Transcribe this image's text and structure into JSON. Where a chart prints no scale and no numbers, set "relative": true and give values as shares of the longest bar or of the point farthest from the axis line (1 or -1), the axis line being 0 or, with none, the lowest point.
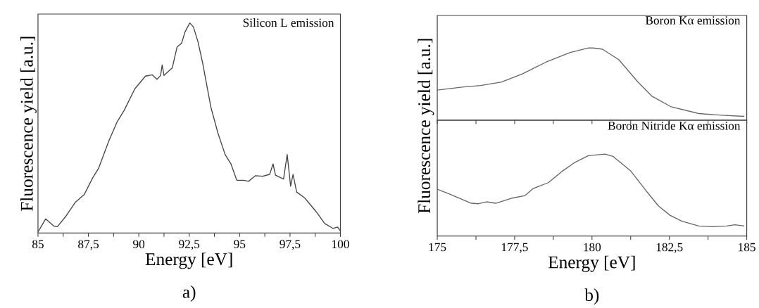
{
  "chart_data": [
    {
      "type": "line",
      "title": "Silicon L emission",
      "xlabel": "Energy [eV]",
      "ylabel": "Fluorescence yield [a.u.]",
      "relative": true,
      "tick_labels": "x",
      "annotations": [
        "a)"
      ],
      "xlim": [
        85,
        100
      ],
      "xticks": [
        85,
        {
          "value": 86.25,
          "label": null
        },
        {
          "value": 87.5,
          "label": "87,5"
        },
        {
          "value": 88.75,
          "label": null
        },
        90,
        {
          "value": 91.25,
          "label": null
        },
        {
          "value": 92.5,
          "label": "92,5"
        },
        {
          "value": 93.75,
          "label": null
        },
        95,
        {
          "value": 96.25,
          "label": null
        },
        {
          "value": 97.5,
          "label": "97,5"
        },
        {
          "value": 98.75,
          "label": null
        },
        100
      ],
      "series": [
        {
          "color": "#444444",
          "x": [
            85,
            85.38,
            85.79,
            85.96,
            86.37,
            86.84,
            87.3,
            87.71,
            88,
            88.52,
            88.93,
            89.28,
            89.8,
            90.33,
            90.67,
            90.9,
            91.08,
            91.16,
            91.25,
            91.66,
            91.9,
            92.12,
            92.3,
            92.53,
            92.71,
            92.94,
            93.17,
            93.58,
            93.93,
            94.28,
            94.57,
            94.86,
            95.21,
            95.44,
            95.79,
            96.14,
            96.49,
            96.66,
            96.78,
            97.18,
            97.36,
            97.53,
            97.65,
            97.83,
            98.23,
            98.81,
            99.22,
            99.63,
            99.86,
            100
          ],
          "values": [
            0.005,
            0.067,
            0.033,
            0.03,
            0.078,
            0.145,
            0.184,
            0.262,
            0.307,
            0.44,
            0.53,
            0.585,
            0.686,
            0.747,
            0.753,
            0.732,
            0.75,
            0.8,
            0.75,
            0.786,
            0.886,
            0.903,
            0.959,
            1.0,
            0.981,
            0.909,
            0.808,
            0.597,
            0.474,
            0.374,
            0.329,
            0.251,
            0.251,
            0.246,
            0.273,
            0.27,
            0.279,
            0.329,
            0.275,
            0.257,
            0.374,
            0.223,
            0.279,
            0.195,
            0.167,
            0.1,
            0.045,
            0.022,
            0.028,
            0.01
          ]
        }
      ]
    },
    {
      "type": "line",
      "title": "Boron Kα emission",
      "ylabel": "Fluorescence yield [a.u.]",
      "relative": true,
      "tick_labels": false,
      "xlim": [
        175,
        185
      ],
      "xticks": [
        175,
        {
          "value": 176.25,
          "label": null
        },
        {
          "value": 177.5,
          "label": null
        },
        {
          "value": 178.75,
          "label": null
        },
        {
          "value": 180,
          "label": null
        },
        {
          "value": 181.25,
          "label": null
        },
        {
          "value": 182.5,
          "label": null
        },
        {
          "value": 183.75,
          "label": null
        },
        {
          "value": 185,
          "label": null
        }
      ],
      "series": [
        {
          "color": "#666666",
          "x": [
            175,
            175.8,
            176.4,
            177.08,
            177.76,
            178.52,
            179.28,
            179.89,
            180.04,
            180.34,
            180.87,
            181.48,
            181.93,
            182.54,
            183.45,
            184.2,
            184.92
          ],
          "values": [
            0.416,
            0.458,
            0.48,
            0.529,
            0.643,
            0.805,
            0.935,
            1.0,
            1.0,
            0.983,
            0.837,
            0.529,
            0.334,
            0.188,
            0.091,
            0.068,
            0.052
          ]
        }
      ]
    },
    {
      "type": "line",
      "title": "Boron Nitride Kα emission",
      "xlabel": "Energy [eV]",
      "relative": true,
      "tick_labels": "x",
      "annotations": [
        "b)"
      ],
      "xlim": [
        175,
        185
      ],
      "xticks": [
        175,
        {
          "value": 176.25,
          "label": null
        },
        {
          "value": 177.5,
          "label": "177,5"
        },
        {
          "value": 178.75,
          "label": null
        },
        180,
        {
          "value": 181.25,
          "label": null
        },
        {
          "value": 182.5,
          "label": "182,5"
        },
        {
          "value": 183.75,
          "label": null
        },
        185
      ],
      "series": [
        {
          "color": "#666666",
          "x": [
            175,
            175.42,
            176.1,
            176.33,
            176.59,
            176.89,
            177.39,
            177.84,
            178.1,
            178.59,
            179.05,
            179.43,
            179.88,
            180.42,
            180.68,
            181.25,
            181.78,
            182.15,
            182.53,
            182.91,
            183.45,
            183.9,
            184.35,
            184.62,
            184.92
          ],
          "values": [
            0.571,
            0.508,
            0.4,
            0.394,
            0.417,
            0.4,
            0.46,
            0.494,
            0.58,
            0.651,
            0.794,
            0.894,
            0.98,
            1.0,
            0.971,
            0.794,
            0.537,
            0.366,
            0.251,
            0.18,
            0.123,
            0.114,
            0.123,
            0.137,
            0.123
          ]
        }
      ]
    }
  ]
}
